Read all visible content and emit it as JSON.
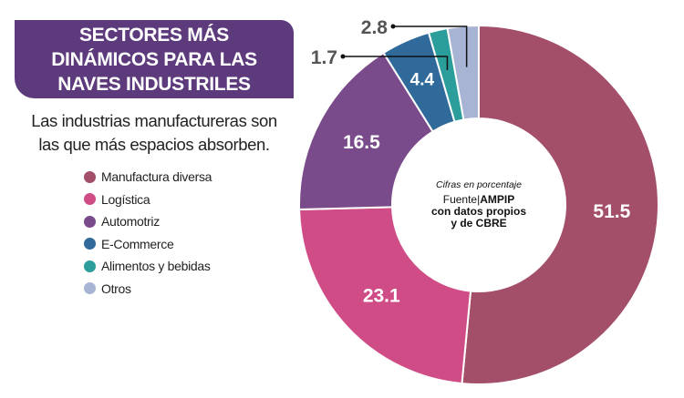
{
  "title_lines": [
    "SECTORES MÁS",
    "DINÁMICOS PARA LAS",
    "NAVES INDUSTRILES"
  ],
  "subtitle_lines": [
    "Las industrias manufactureras son",
    "las que más espacios absorben."
  ],
  "center_note": "Cifras en porcentaje",
  "source": {
    "prefix": "Fuente|",
    "name": "AMPIP",
    "rest_line1": "con datos propios",
    "rest_line2": "y de CBRE"
  },
  "chart_data": {
    "type": "pie",
    "variant": "donut",
    "unit": "%",
    "start": "top, clockwise",
    "categories": [
      "Manufactura diversa",
      "Logística",
      "Automotriz",
      "E-Commerce",
      "Alimentos y bebidas",
      "Otros"
    ],
    "values": [
      51.5,
      23.1,
      16.5,
      4.4,
      1.7,
      2.8
    ],
    "labels": [
      "51.5",
      "23.1",
      "16.5",
      "4.4",
      "1.7",
      "2.8"
    ],
    "colors": [
      "#a44f69",
      "#cf4c87",
      "#7a4b8b",
      "#2f6a9b",
      "#2b9e9b",
      "#a8b4d4"
    ],
    "legend": "left"
  }
}
